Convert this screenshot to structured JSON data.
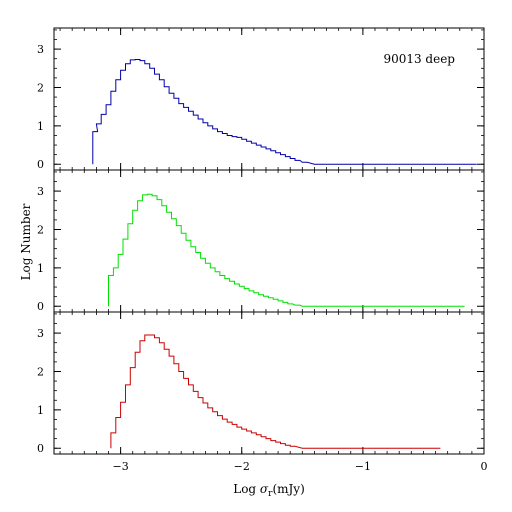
{
  "chart_data": {
    "type": "histogram",
    "stacked_panels": 3,
    "shared_x": true,
    "xlabel_prefix": "Log ",
    "xlabel_symbol": "σ",
    "xlabel_sub": "r",
    "xlabel_suffix": "(mJy)",
    "ylabel": "Log Number",
    "xlim": [
      -3.55,
      0
    ],
    "x_tick_labels": [
      {
        "x": -3,
        "label": "−3"
      },
      {
        "x": -2,
        "label": "−2"
      },
      {
        "x": -1,
        "label": "−1"
      },
      {
        "x": 0,
        "label": "0"
      }
    ],
    "x_major_ticks": [
      -3,
      -2,
      -1,
      0
    ],
    "x_minor_step": 0.1,
    "bin_width": 0.02,
    "panels": [
      {
        "annotation": "90013 deep",
        "color": "#0000aa",
        "ylim": [
          -0.15,
          3.55
        ],
        "y_tick_labels": [
          "0",
          "1",
          "2",
          "3"
        ],
        "y_major_ticks": [
          0,
          1,
          2,
          3
        ],
        "y_minor_step": 0.25,
        "points": [
          [
            -3.23,
            0.85
          ],
          [
            -3.2,
            1.05
          ],
          [
            -3.16,
            1.3
          ],
          [
            -3.12,
            1.55
          ],
          [
            -3.08,
            1.9
          ],
          [
            -3.04,
            2.2
          ],
          [
            -3.0,
            2.45
          ],
          [
            -2.96,
            2.62
          ],
          [
            -2.92,
            2.72
          ],
          [
            -2.88,
            2.73
          ],
          [
            -2.84,
            2.7
          ],
          [
            -2.8,
            2.62
          ],
          [
            -2.76,
            2.5
          ],
          [
            -2.72,
            2.35
          ],
          [
            -2.68,
            2.2
          ],
          [
            -2.64,
            2.02
          ],
          [
            -2.6,
            1.85
          ],
          [
            -2.56,
            1.72
          ],
          [
            -2.52,
            1.58
          ],
          [
            -2.48,
            1.48
          ],
          [
            -2.44,
            1.38
          ],
          [
            -2.4,
            1.28
          ],
          [
            -2.36,
            1.18
          ],
          [
            -2.32,
            1.08
          ],
          [
            -2.28,
            1.0
          ],
          [
            -2.24,
            0.92
          ],
          [
            -2.2,
            0.85
          ],
          [
            -2.16,
            0.8
          ],
          [
            -2.12,
            0.75
          ],
          [
            -2.08,
            0.72
          ],
          [
            -2.04,
            0.7
          ],
          [
            -2.0,
            0.65
          ],
          [
            -1.96,
            0.6
          ],
          [
            -1.92,
            0.55
          ],
          [
            -1.88,
            0.5
          ],
          [
            -1.84,
            0.45
          ],
          [
            -1.8,
            0.4
          ],
          [
            -1.76,
            0.35
          ],
          [
            -1.72,
            0.3
          ],
          [
            -1.68,
            0.25
          ],
          [
            -1.64,
            0.2
          ],
          [
            -1.6,
            0.15
          ],
          [
            -1.56,
            0.1
          ],
          [
            -1.5,
            0.05
          ],
          [
            -1.4,
            0.0
          ],
          [
            -1.2,
            0.0
          ],
          [
            -1.0,
            0.0
          ],
          [
            -0.8,
            0.0
          ],
          [
            -0.6,
            0.0
          ],
          [
            -0.4,
            0.0
          ],
          [
            -0.2,
            0.0
          ],
          [
            -0.1,
            0.0
          ]
        ]
      },
      {
        "annotation": "",
        "color": "#00e000",
        "ylim": [
          -0.15,
          3.55
        ],
        "y_tick_labels": [
          "0",
          "1",
          "2",
          "3"
        ],
        "y_major_ticks": [
          0,
          1,
          2,
          3
        ],
        "y_minor_step": 0.25,
        "points": [
          [
            -3.1,
            0.8
          ],
          [
            -3.06,
            1.0
          ],
          [
            -3.02,
            1.35
          ],
          [
            -2.98,
            1.75
          ],
          [
            -2.94,
            2.15
          ],
          [
            -2.9,
            2.5
          ],
          [
            -2.86,
            2.75
          ],
          [
            -2.82,
            2.9
          ],
          [
            -2.78,
            2.92
          ],
          [
            -2.74,
            2.88
          ],
          [
            -2.7,
            2.78
          ],
          [
            -2.66,
            2.62
          ],
          [
            -2.62,
            2.45
          ],
          [
            -2.58,
            2.28
          ],
          [
            -2.54,
            2.1
          ],
          [
            -2.5,
            1.9
          ],
          [
            -2.46,
            1.72
          ],
          [
            -2.42,
            1.55
          ],
          [
            -2.38,
            1.4
          ],
          [
            -2.34,
            1.25
          ],
          [
            -2.3,
            1.12
          ],
          [
            -2.26,
            1.0
          ],
          [
            -2.22,
            0.9
          ],
          [
            -2.18,
            0.8
          ],
          [
            -2.14,
            0.72
          ],
          [
            -2.1,
            0.65
          ],
          [
            -2.06,
            0.58
          ],
          [
            -2.02,
            0.52
          ],
          [
            -1.98,
            0.46
          ],
          [
            -1.94,
            0.4
          ],
          [
            -1.9,
            0.35
          ],
          [
            -1.86,
            0.3
          ],
          [
            -1.82,
            0.26
          ],
          [
            -1.78,
            0.22
          ],
          [
            -1.74,
            0.18
          ],
          [
            -1.7,
            0.14
          ],
          [
            -1.66,
            0.1
          ],
          [
            -1.62,
            0.06
          ],
          [
            -1.56,
            0.03
          ],
          [
            -1.5,
            0.0
          ],
          [
            -1.3,
            0.0
          ],
          [
            -1.1,
            0.0
          ],
          [
            -0.9,
            0.0
          ],
          [
            -0.7,
            0.0
          ],
          [
            -0.5,
            0.0
          ],
          [
            -0.3,
            0.0
          ],
          [
            -0.2,
            0.0
          ]
        ]
      },
      {
        "annotation": "",
        "color": "#cc0000",
        "ylim": [
          -0.15,
          3.55
        ],
        "y_tick_labels": [
          "0",
          "1",
          "2",
          "3"
        ],
        "y_major_ticks": [
          0,
          1,
          2,
          3
        ],
        "y_minor_step": 0.25,
        "points": [
          [
            -3.08,
            0.4
          ],
          [
            -3.04,
            0.8
          ],
          [
            -3.0,
            1.2
          ],
          [
            -2.96,
            1.65
          ],
          [
            -2.92,
            2.1
          ],
          [
            -2.88,
            2.5
          ],
          [
            -2.84,
            2.8
          ],
          [
            -2.8,
            2.95
          ],
          [
            -2.76,
            2.95
          ],
          [
            -2.72,
            2.88
          ],
          [
            -2.68,
            2.75
          ],
          [
            -2.64,
            2.58
          ],
          [
            -2.6,
            2.4
          ],
          [
            -2.56,
            2.2
          ],
          [
            -2.52,
            2.0
          ],
          [
            -2.48,
            1.82
          ],
          [
            -2.44,
            1.65
          ],
          [
            -2.4,
            1.48
          ],
          [
            -2.36,
            1.32
          ],
          [
            -2.32,
            1.18
          ],
          [
            -2.28,
            1.05
          ],
          [
            -2.24,
            0.95
          ],
          [
            -2.2,
            0.85
          ],
          [
            -2.16,
            0.76
          ],
          [
            -2.12,
            0.68
          ],
          [
            -2.08,
            0.62
          ],
          [
            -2.04,
            0.55
          ],
          [
            -2.0,
            0.5
          ],
          [
            -1.96,
            0.45
          ],
          [
            -1.92,
            0.4
          ],
          [
            -1.88,
            0.35
          ],
          [
            -1.84,
            0.3
          ],
          [
            -1.8,
            0.25
          ],
          [
            -1.76,
            0.2
          ],
          [
            -1.72,
            0.16
          ],
          [
            -1.68,
            0.12
          ],
          [
            -1.64,
            0.08
          ],
          [
            -1.6,
            0.05
          ],
          [
            -1.5,
            0.0
          ],
          [
            -1.3,
            0.0
          ],
          [
            -1.1,
            0.0
          ],
          [
            -0.9,
            0.0
          ],
          [
            -0.7,
            0.0
          ],
          [
            -0.5,
            0.0
          ],
          [
            -0.4,
            0.0
          ]
        ]
      }
    ]
  }
}
